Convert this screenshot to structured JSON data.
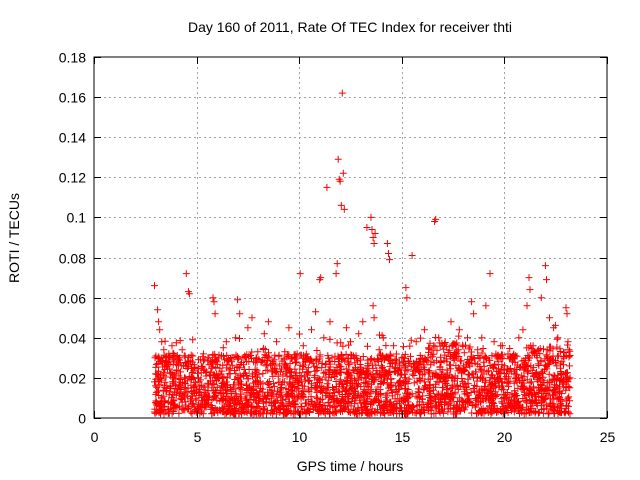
{
  "chart_data": {
    "type": "scatter",
    "title": "Day 160 of 2011, Rate Of TEC Index for receiver thti",
    "xlabel": "GPS time / hours",
    "ylabel": "ROTI / TECUs",
    "xlim": [
      0,
      25
    ],
    "ylim": [
      0,
      0.18
    ],
    "xticks": [
      0,
      5,
      10,
      15,
      20,
      25
    ],
    "xtick_labels": [
      "0",
      "5",
      "10",
      "15",
      "20",
      "25"
    ],
    "yticks": [
      0,
      0.02,
      0.04,
      0.06,
      0.08,
      0.1,
      0.12,
      0.14,
      0.16,
      0.18
    ],
    "ytick_labels": [
      "0",
      "0.02",
      "0.04",
      "0.06",
      "0.08",
      "0.1",
      "0.12",
      "0.14",
      "0.16",
      "0.18"
    ],
    "grid": true,
    "marker": "+",
    "color": "#ff0000",
    "series": [
      {
        "name": "ROTI",
        "points": [
          [
            2.95,
            0.066
          ],
          [
            2.95,
            0.018
          ],
          [
            3.0,
            0.016
          ],
          [
            3.05,
            0.022
          ],
          [
            3.1,
            0.054
          ],
          [
            3.15,
            0.048
          ],
          [
            3.2,
            0.044
          ],
          [
            3.3,
            0.038
          ],
          [
            3.4,
            0.034
          ],
          [
            3.5,
            0.03
          ],
          [
            3.6,
            0.026
          ],
          [
            3.7,
            0.013
          ],
          [
            3.8,
            0.01
          ],
          [
            3.9,
            0.018
          ],
          [
            4.0,
            0.022
          ],
          [
            4.1,
            0.029
          ],
          [
            4.2,
            0.016
          ],
          [
            4.3,
            0.034
          ],
          [
            4.4,
            0.031
          ],
          [
            4.5,
            0.072
          ],
          [
            4.6,
            0.063
          ],
          [
            4.65,
            0.062
          ],
          [
            4.8,
            0.011
          ],
          [
            5.0,
            0.014
          ],
          [
            5.2,
            0.019
          ],
          [
            5.4,
            0.024
          ],
          [
            5.6,
            0.03
          ],
          [
            5.8,
            0.06
          ],
          [
            5.85,
            0.058
          ],
          [
            5.9,
            0.052
          ],
          [
            6.1,
            0.02
          ],
          [
            6.3,
            0.035
          ],
          [
            6.5,
            0.016
          ],
          [
            6.7,
            0.028
          ],
          [
            6.9,
            0.04
          ],
          [
            7.0,
            0.059
          ],
          [
            7.1,
            0.052
          ],
          [
            7.3,
            0.022
          ],
          [
            7.5,
            0.045
          ],
          [
            7.7,
            0.05
          ],
          [
            7.9,
            0.03
          ],
          [
            8.1,
            0.018
          ],
          [
            8.3,
            0.042
          ],
          [
            8.5,
            0.048
          ],
          [
            8.7,
            0.024
          ],
          [
            8.9,
            0.038
          ],
          [
            9.1,
            0.014
          ],
          [
            9.3,
            0.033
          ],
          [
            9.5,
            0.045
          ],
          [
            9.7,
            0.02
          ],
          [
            9.9,
            0.032
          ],
          [
            10.05,
            0.072
          ],
          [
            10.2,
            0.036
          ],
          [
            10.4,
            0.022
          ],
          [
            10.6,
            0.044
          ],
          [
            10.8,
            0.053
          ],
          [
            11.0,
            0.069
          ],
          [
            11.05,
            0.07
          ],
          [
            11.2,
            0.04
          ],
          [
            11.35,
            0.115
          ],
          [
            11.5,
            0.048
          ],
          [
            11.6,
            0.03
          ],
          [
            11.8,
            0.072
          ],
          [
            11.85,
            0.077
          ],
          [
            11.9,
            0.129
          ],
          [
            11.95,
            0.119
          ],
          [
            12.0,
            0.118
          ],
          [
            12.05,
            0.106
          ],
          [
            12.1,
            0.162
          ],
          [
            12.15,
            0.122
          ],
          [
            12.2,
            0.104
          ],
          [
            12.3,
            0.045
          ],
          [
            12.5,
            0.038
          ],
          [
            12.7,
            0.03
          ],
          [
            12.9,
            0.042
          ],
          [
            13.1,
            0.048
          ],
          [
            13.3,
            0.095
          ],
          [
            13.5,
            0.1
          ],
          [
            13.55,
            0.094
          ],
          [
            13.6,
            0.09
          ],
          [
            13.65,
            0.087
          ],
          [
            13.7,
            0.092
          ],
          [
            13.6,
            0.056
          ],
          [
            13.65,
            0.05
          ],
          [
            13.9,
            0.034
          ],
          [
            14.1,
            0.04
          ],
          [
            14.3,
            0.087
          ],
          [
            14.35,
            0.082
          ],
          [
            14.4,
            0.079
          ],
          [
            14.6,
            0.036
          ],
          [
            14.8,
            0.024
          ],
          [
            15.0,
            0.03
          ],
          [
            15.2,
            0.065
          ],
          [
            15.25,
            0.06
          ],
          [
            15.5,
            0.081
          ],
          [
            15.7,
            0.038
          ],
          [
            15.9,
            0.028
          ],
          [
            16.1,
            0.044
          ],
          [
            16.3,
            0.035
          ],
          [
            16.6,
            0.098
          ],
          [
            16.65,
            0.099
          ],
          [
            16.8,
            0.04
          ],
          [
            17.0,
            0.036
          ],
          [
            17.2,
            0.028
          ],
          [
            17.4,
            0.048
          ],
          [
            17.6,
            0.032
          ],
          [
            17.8,
            0.044
          ],
          [
            18.0,
            0.026
          ],
          [
            18.2,
            0.04
          ],
          [
            18.4,
            0.058
          ],
          [
            18.5,
            0.052
          ],
          [
            18.7,
            0.034
          ],
          [
            18.9,
            0.04
          ],
          [
            19.1,
            0.056
          ],
          [
            19.3,
            0.072
          ],
          [
            19.5,
            0.038
          ],
          [
            19.7,
            0.028
          ],
          [
            19.9,
            0.036
          ],
          [
            20.1,
            0.022
          ],
          [
            20.3,
            0.03
          ],
          [
            20.5,
            0.024
          ],
          [
            20.7,
            0.04
          ],
          [
            20.9,
            0.044
          ],
          [
            21.1,
            0.056
          ],
          [
            21.2,
            0.07
          ],
          [
            21.25,
            0.064
          ],
          [
            21.4,
            0.036
          ],
          [
            21.6,
            0.03
          ],
          [
            21.8,
            0.06
          ],
          [
            22.0,
            0.076
          ],
          [
            22.05,
            0.069
          ],
          [
            22.2,
            0.05
          ],
          [
            22.4,
            0.045
          ],
          [
            22.6,
            0.04
          ],
          [
            22.8,
            0.028
          ],
          [
            23.0,
            0.055
          ],
          [
            23.05,
            0.052
          ],
          [
            23.1,
            0.038
          ],
          [
            23.15,
            0.034
          ],
          [
            23.2,
            0.02
          ]
        ]
      }
    ],
    "dense_band": {
      "x_range": [
        2.95,
        23.2
      ],
      "y_base_min": 0.002,
      "y_base_max": 0.032,
      "count": 2600
    }
  }
}
